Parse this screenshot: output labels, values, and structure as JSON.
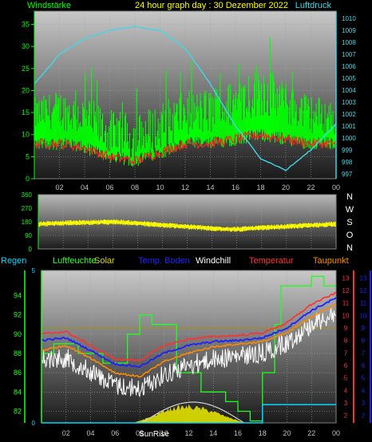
{
  "colors": {
    "wind": "#00ff00",
    "gust": "#ff2020",
    "pressure": "#40d8e8",
    "direction": "#ffff00",
    "rain": "#00d8ff",
    "humidity": "#20ff20",
    "solar": "#d8d800",
    "soil_temp": "#2020ff",
    "windchill": "#ffffff",
    "temperature": "#ff3030",
    "dewpoint": "#ff8800"
  },
  "chart_data": [
    {
      "type": "line",
      "title": "24 hour graph day : 30 Dezember 2022",
      "left_label": "Windstärke",
      "right_label": "Luftdruck",
      "x_ticks": [
        "02",
        "04",
        "06",
        "08",
        "10",
        "12",
        "14",
        "16",
        "18",
        "20",
        "22",
        "00"
      ],
      "y_left_ticks": [
        "0",
        "5",
        "10",
        "15",
        "20",
        "25",
        "30",
        "35"
      ],
      "y_right_ticks": [
        "997",
        "998",
        "999",
        "1000",
        "1001",
        "1002",
        "1003",
        "1004",
        "1005",
        "1006",
        "1007",
        "1008",
        "1009",
        "1010"
      ],
      "ylim_left": [
        0,
        38
      ],
      "ylim_right": [
        996.6,
        1010.6
      ],
      "x": [
        0,
        2,
        4,
        6,
        8,
        10,
        12,
        14,
        16,
        18,
        20,
        22,
        24
      ],
      "series": [
        {
          "key": "wind_avg",
          "values": [
            13,
            14,
            12,
            8,
            7,
            9,
            13,
            13,
            15,
            18,
            15,
            13,
            12
          ]
        },
        {
          "key": "wind_gust",
          "values": [
            20,
            22,
            21,
            18,
            17,
            20,
            22,
            23,
            25,
            30,
            24,
            21,
            20
          ]
        },
        {
          "key": "gust_low",
          "values": [
            8,
            8,
            7,
            5,
            4,
            6,
            8,
            8,
            9,
            10,
            9,
            8,
            8
          ]
        },
        {
          "key": "pressure",
          "values": [
            1004.5,
            1007.0,
            1008.3,
            1009.0,
            1009.3,
            1009.0,
            1007.5,
            1004.5,
            1001.0,
            998.3,
            997.3,
            999.0,
            1001.2
          ]
        }
      ]
    },
    {
      "type": "line",
      "y_ticks": [
        "360",
        "270",
        "180",
        "90",
        "0"
      ],
      "ylim": [
        0,
        360
      ],
      "right_labels": [
        "N",
        "W",
        "S",
        "O",
        "N"
      ],
      "x": [
        0,
        2,
        4,
        6,
        8,
        10,
        12,
        14,
        16,
        18,
        20,
        22,
        24
      ],
      "series": [
        {
          "key": "wind_direction",
          "values": [
            165,
            172,
            175,
            180,
            170,
            158,
            148,
            135,
            130,
            140,
            148,
            158,
            165
          ]
        }
      ]
    },
    {
      "type": "line",
      "legend": [
        "Regen",
        "Luftfeuchte",
        "Solar",
        "Temp. Boden",
        "Windchill",
        "Temperatur",
        "Taupunkt"
      ],
      "x_ticks": [
        "02",
        "04",
        "06",
        "08",
        "10",
        "12",
        "14",
        "16",
        "18",
        "20",
        "22",
        "00"
      ],
      "x_annotation": "SunRise",
      "y_left_ticks": [
        "82",
        "84",
        "86",
        "88",
        "90",
        "92",
        "94"
      ],
      "ylim_left": [
        80.8,
        96.6
      ],
      "y_rain_ticks": [
        "0",
        "5"
      ],
      "ylim_rain": [
        0,
        5
      ],
      "y_right1_ticks": [
        "2",
        "3",
        "4",
        "5",
        "6",
        "7",
        "8",
        "9",
        "10",
        "11",
        "12",
        "13"
      ],
      "y_right2_ticks": [
        "2",
        "3",
        "4",
        "5",
        "6",
        "7",
        "8",
        "9",
        "10",
        "11",
        "12",
        "13"
      ],
      "ylim_temp": [
        1.4,
        13.6
      ],
      "x": [
        0,
        2,
        4,
        6,
        8,
        10,
        12,
        14,
        16,
        18,
        20,
        22,
        24
      ],
      "series": [
        {
          "key": "temperature",
          "values": [
            8.5,
            8.7,
            7.6,
            6.5,
            6.4,
            7.6,
            8.1,
            8.3,
            8.4,
            8.6,
            9.4,
            10.9,
            11.8
          ]
        },
        {
          "key": "soil_temp",
          "values": [
            8.0,
            8.2,
            7.2,
            6.1,
            5.9,
            7.0,
            7.6,
            7.9,
            8.0,
            8.2,
            9.0,
            10.4,
            11.4
          ]
        },
        {
          "key": "dewpoint",
          "values": [
            7.2,
            7.6,
            6.6,
            5.4,
            5.1,
            6.3,
            7.0,
            7.5,
            7.7,
            7.9,
            8.6,
            9.9,
            10.9
          ]
        },
        {
          "key": "windchill",
          "values": [
            7.0,
            7.1,
            6.0,
            4.9,
            4.6,
            5.8,
            6.5,
            7.0,
            7.2,
            7.5,
            8.3,
            9.8,
            10.7
          ]
        },
        {
          "key": "humidity",
          "x": [
            0,
            1,
            3,
            5,
            7,
            8,
            9,
            10.5,
            11,
            13,
            15,
            16,
            17,
            17.6,
            18,
            19,
            19.5,
            21,
            22,
            23,
            24
          ],
          "values": [
            88,
            89,
            88,
            87,
            90,
            92,
            91,
            91,
            86,
            84,
            83,
            82,
            81,
            81,
            86,
            91,
            95,
            95,
            96,
            95,
            95
          ]
        },
        {
          "key": "rain",
          "x": [
            0,
            17.5,
            18,
            19,
            24
          ],
          "values": [
            0,
            0,
            0.6,
            0.6,
            0.6
          ]
        },
        {
          "key": "solar",
          "x": [
            7.5,
            9,
            10,
            11,
            12,
            13,
            14,
            15,
            16,
            16.5
          ],
          "values": [
            0,
            0.4,
            0.75,
            0.95,
            1.0,
            0.9,
            0.7,
            0.4,
            0.15,
            0
          ]
        }
      ]
    }
  ]
}
